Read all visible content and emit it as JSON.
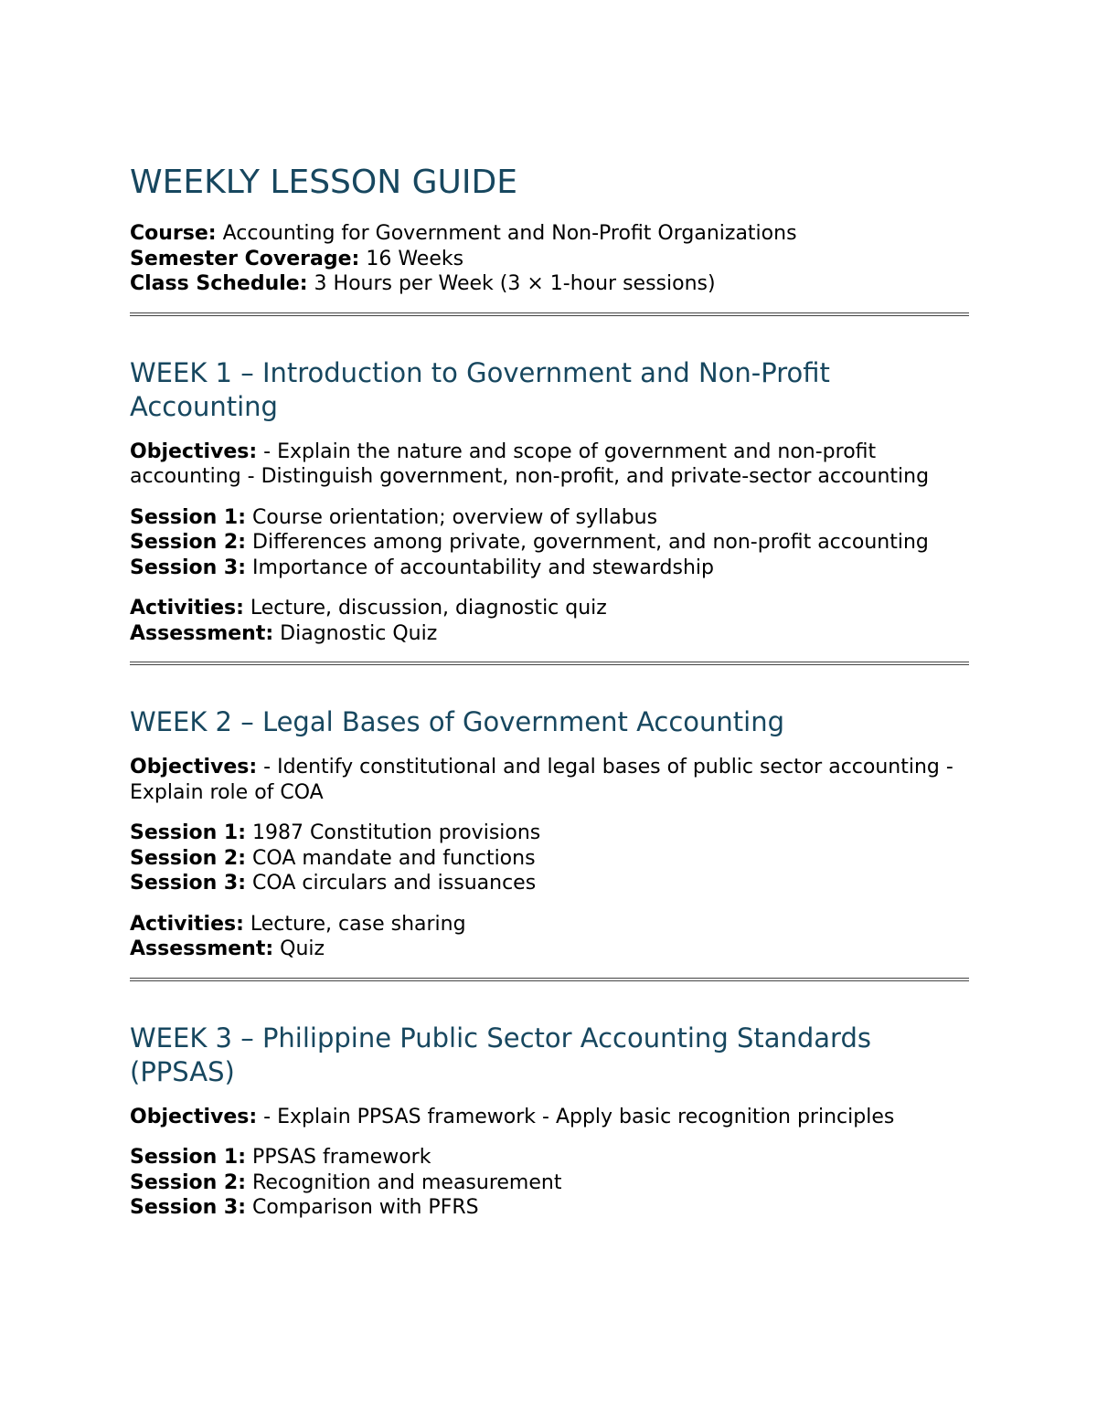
{
  "title": "WEEKLY LESSON GUIDE",
  "meta": [
    {
      "label": "Course:",
      "value": "Accounting for Government and Non-Profit Organizations"
    },
    {
      "label": "Semester Coverage:",
      "value": "16 Weeks"
    },
    {
      "label": "Class Schedule:",
      "value": "3 Hours per Week (3 × 1-hour sessions)"
    }
  ],
  "colors": {
    "heading": "#17475f",
    "text": "#000000"
  },
  "weeks": [
    {
      "heading": "WEEK 1 – Introduction to Government and Non-Profit Accounting",
      "objectives_label": "Objectives:",
      "objectives": "- Explain the nature and scope of government and non-profit accounting - Distinguish government, non-profit, and private-sector accounting",
      "sessions": [
        {
          "label": "Session 1:",
          "text": "Course orientation; overview of syllabus"
        },
        {
          "label": "Session 2:",
          "text": "Differences among private, government, and non-profit accounting"
        },
        {
          "label": "Session 3:",
          "text": "Importance of accountability and stewardship"
        }
      ],
      "activities_label": "Activities:",
      "activities": "Lecture, discussion, diagnostic quiz",
      "assessment_label": "Assessment:",
      "assessment": "Diagnostic Quiz"
    },
    {
      "heading": "WEEK 2 – Legal Bases of Government Accounting",
      "objectives_label": "Objectives:",
      "objectives": "- Identify constitutional and legal bases of public sector accounting - Explain role of COA",
      "sessions": [
        {
          "label": "Session 1:",
          "text": "1987 Constitution provisions"
        },
        {
          "label": "Session 2:",
          "text": "COA mandate and functions"
        },
        {
          "label": "Session 3:",
          "text": "COA circulars and issuances"
        }
      ],
      "activities_label": "Activities:",
      "activities": "Lecture, case sharing",
      "assessment_label": "Assessment:",
      "assessment": "Quiz"
    },
    {
      "heading": "WEEK 3 – Philippine Public Sector Accounting Standards (PPSAS)",
      "objectives_label": "Objectives:",
      "objectives": "- Explain PPSAS framework - Apply basic recognition principles",
      "sessions": [
        {
          "label": "Session 1:",
          "text": "PPSAS framework"
        },
        {
          "label": "Session 2:",
          "text": "Recognition and measurement"
        },
        {
          "label": "Session 3:",
          "text": "Comparison with PFRS"
        }
      ]
    }
  ]
}
